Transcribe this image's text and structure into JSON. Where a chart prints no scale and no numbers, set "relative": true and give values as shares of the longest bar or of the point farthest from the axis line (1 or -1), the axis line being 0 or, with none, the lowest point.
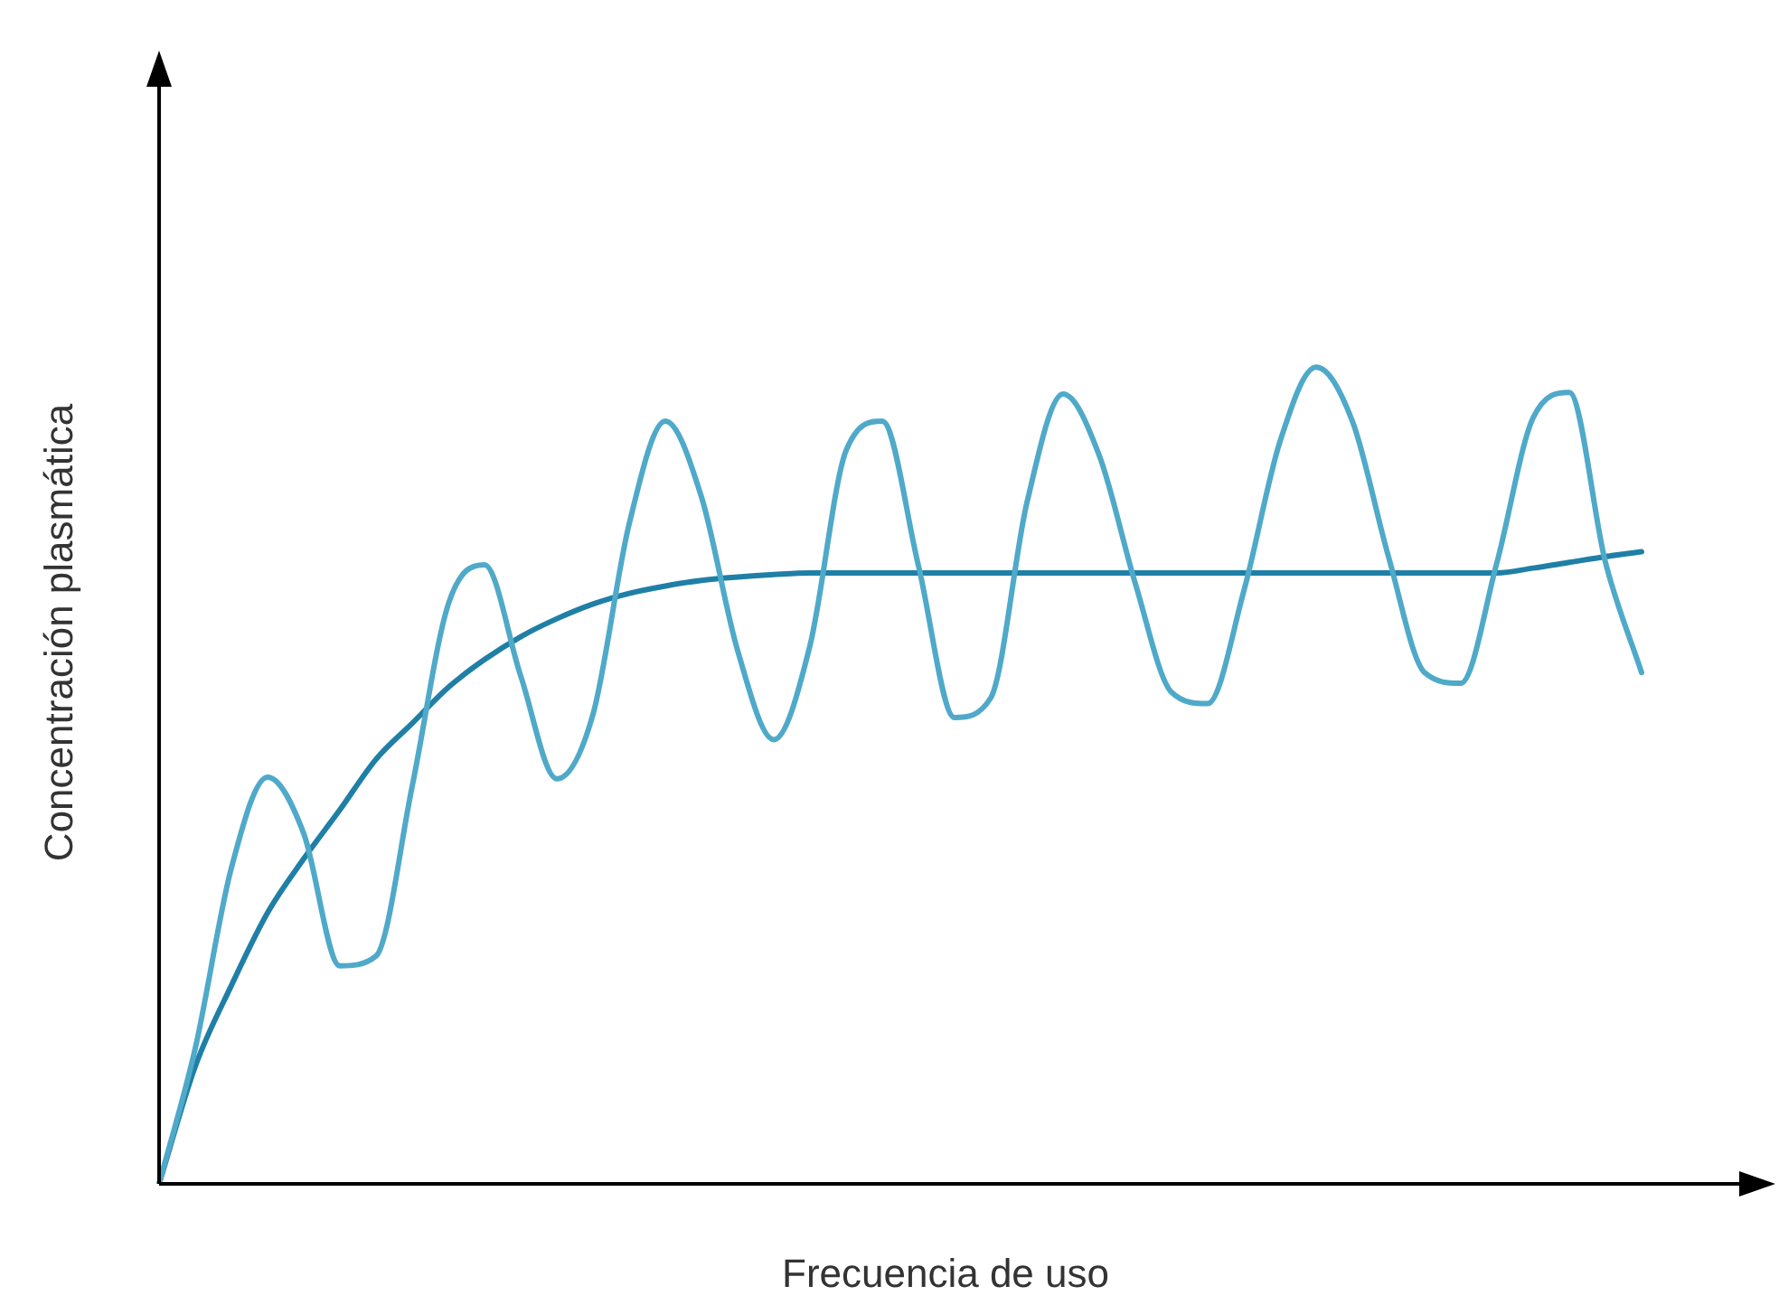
{
  "chart_data": {
    "type": "line",
    "relative": true,
    "xlabel": "Frecuencia de uso",
    "ylabel": "Concentración plasmática",
    "legend": false,
    "marker": "none",
    "categories": [
      null,
      null,
      null,
      null,
      null,
      null,
      null,
      null,
      null,
      null,
      null,
      null,
      null,
      null,
      null,
      null,
      null,
      null,
      null,
      null,
      null,
      null,
      null,
      null,
      null,
      null,
      null,
      null,
      null,
      null,
      null,
      null,
      null,
      null,
      null,
      null,
      null,
      null,
      null,
      null,
      null,
      null
    ],
    "series": [
      {
        "color": "#4fa9c9",
        "values": [
          0,
          0.166,
          0.387,
          0.498,
          0.429,
          0.267,
          0.279,
          0.487,
          0.71,
          0.758,
          0.622,
          0.496,
          0.575,
          0.808,
          0.934,
          0.841,
          0.653,
          0.544,
          0.659,
          0.898,
          0.934,
          0.757,
          0.571,
          0.595,
          0.834,
          0.967,
          0.892,
          0.735,
          0.602,
          0.588,
          0.726,
          0.909,
          1,
          0.934,
          0.768,
          0.626,
          0.613,
          0.761,
          0.938,
          0.969,
          0.761,
          0.626
        ]
      },
      {
        "color": "#1f7fa6",
        "values": [
          0,
          0.144,
          0.243,
          0.332,
          0.398,
          0.458,
          0.52,
          0.564,
          0.608,
          0.642,
          0.67,
          0.692,
          0.71,
          0.723,
          0.732,
          0.739,
          0.743,
          0.746,
          0.748,
          0.748,
          0.748,
          0.748,
          0.748,
          0.748,
          0.748,
          0.748,
          0.748,
          0.748,
          0.748,
          0.748,
          0.748,
          0.748,
          0.748,
          0.748,
          0.748,
          0.748,
          0.748,
          0.748,
          0.754,
          0.761,
          0.768,
          0.774
        ]
      }
    ]
  }
}
